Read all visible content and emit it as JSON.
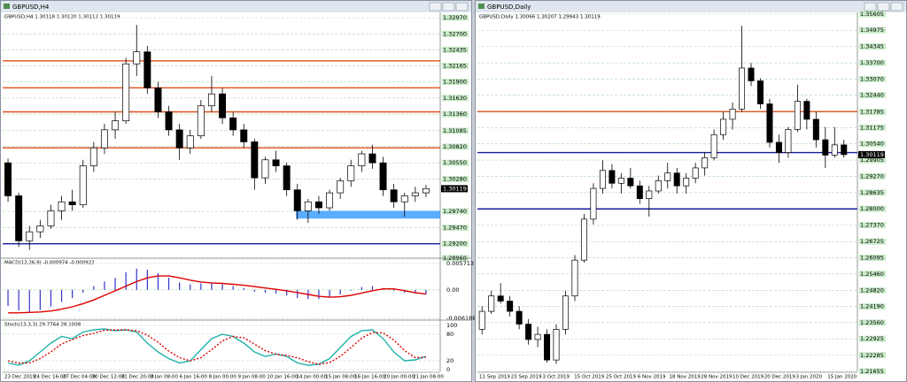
{
  "windows": [
    {
      "title": "GBPUSD,H4",
      "info": "GBPUSD,H4  1.30118 1.30120 1.30112 1.30119",
      "price": {
        "ylim": [
          1.2896,
          1.3297
        ],
        "yticks": [
          {
            "value": 1.3297,
            "label": "1.32970"
          },
          {
            "value": 1.327,
            "label": "1.32700"
          },
          {
            "value": 1.32435,
            "label": "1.32435"
          },
          {
            "value": 1.32165,
            "label": "1.32165"
          },
          {
            "value": 1.319,
            "label": "1.31900"
          },
          {
            "value": 1.3163,
            "label": "1.31630"
          },
          {
            "value": 1.3136,
            "label": "1.31360"
          },
          {
            "value": 1.31085,
            "label": "1.31085"
          },
          {
            "value": 1.3082,
            "label": "1.30820"
          },
          {
            "value": 1.3055,
            "label": "1.30550"
          },
          {
            "value": 1.3028,
            "label": "1.30280"
          },
          {
            "value": 1.2974,
            "label": "1.29740"
          },
          {
            "value": 1.2947,
            "label": "1.29470"
          },
          {
            "value": 1.292,
            "label": "1.29200"
          },
          {
            "value": 1.2896,
            "label": "1.28960"
          }
        ],
        "current": 1.30119,
        "levels": [
          {
            "value": 1.3225,
            "color": "#e0501e"
          },
          {
            "value": 1.318,
            "color": "#e0501e"
          },
          {
            "value": 1.314,
            "color": "#e0501e"
          },
          {
            "value": 1.308,
            "color": "#e0501e"
          },
          {
            "value": 1.292,
            "color": "#1a1aa0"
          }
        ],
        "zones": [
          {
            "low": 1.2962,
            "high": 1.2975,
            "color": "#3399ff"
          }
        ],
        "candles": [
          [
            1.3055,
            1.3062,
            1.299,
            1.3
          ],
          [
            1.3,
            1.3005,
            1.2915,
            1.2925
          ],
          [
            1.2925,
            1.295,
            1.291,
            1.294
          ],
          [
            1.294,
            1.296,
            1.293,
            1.295
          ],
          [
            1.295,
            1.2985,
            1.2945,
            1.2975
          ],
          [
            1.2975,
            1.3,
            1.296,
            1.299
          ],
          [
            1.299,
            1.301,
            1.2975,
            1.2985
          ],
          [
            1.2985,
            1.306,
            1.298,
            1.305
          ],
          [
            1.305,
            1.309,
            1.304,
            1.308
          ],
          [
            1.308,
            1.312,
            1.307,
            1.311
          ],
          [
            1.311,
            1.314,
            1.3095,
            1.3125
          ],
          [
            1.3125,
            1.323,
            1.312,
            1.322
          ],
          [
            1.322,
            1.3285,
            1.32,
            1.324
          ],
          [
            1.324,
            1.325,
            1.317,
            1.318
          ],
          [
            1.318,
            1.319,
            1.313,
            1.314
          ],
          [
            1.314,
            1.315,
            1.31,
            1.311
          ],
          [
            1.311,
            1.312,
            1.306,
            1.308
          ],
          [
            1.308,
            1.311,
            1.307,
            1.31
          ],
          [
            1.31,
            1.316,
            1.3095,
            1.315
          ],
          [
            1.315,
            1.32,
            1.314,
            1.317
          ],
          [
            1.317,
            1.318,
            1.312,
            1.313
          ],
          [
            1.313,
            1.314,
            1.31,
            1.311
          ],
          [
            1.311,
            1.312,
            1.308,
            1.309
          ],
          [
            1.309,
            1.3095,
            1.301,
            1.303
          ],
          [
            1.303,
            1.3065,
            1.302,
            1.306
          ],
          [
            1.306,
            1.3075,
            1.304,
            1.305
          ],
          [
            1.305,
            1.3055,
            1.3,
            1.301
          ],
          [
            1.301,
            1.302,
            1.296,
            1.2975
          ],
          [
            1.2975,
            1.2995,
            1.2955,
            1.299
          ],
          [
            1.299,
            1.3,
            1.297,
            1.298
          ],
          [
            1.298,
            1.301,
            1.2975,
            1.3005
          ],
          [
            1.3005,
            1.303,
            1.2995,
            1.3025
          ],
          [
            1.3025,
            1.306,
            1.3015,
            1.305
          ],
          [
            1.305,
            1.3075,
            1.304,
            1.307
          ],
          [
            1.307,
            1.3085,
            1.3045,
            1.3055
          ],
          [
            1.3055,
            1.3065,
            1.3,
            1.301
          ],
          [
            1.301,
            1.302,
            1.298,
            1.299
          ],
          [
            1.299,
            1.3005,
            1.2965,
            1.3
          ],
          [
            1.3,
            1.3015,
            1.299,
            1.3005
          ],
          [
            1.3005,
            1.3018,
            1.2998,
            1.3012
          ]
        ]
      },
      "macd": {
        "title": "MACD(12,26,9) -0.000974 -0.000922",
        "ylim": [
          -0.006188,
          0.005713
        ],
        "yticks": [
          0.005713,
          {
            "value": 0,
            "label": "0.00"
          },
          -0.006188
        ],
        "hist": {
          "color": "#3333cc",
          "values": [
            -0.0035,
            -0.0045,
            -0.0048,
            -0.0044,
            -0.0036,
            -0.0026,
            -0.0018,
            -0.0006,
            0.0008,
            0.0018,
            0.0026,
            0.0038,
            0.0046,
            0.0044,
            0.0036,
            0.0026,
            0.0016,
            0.0012,
            0.0014,
            0.0016,
            0.0012,
            0.0008,
            0.0004,
            -0.0004,
            -0.0006,
            -0.0008,
            -0.0012,
            -0.0018,
            -0.002,
            -0.002,
            -0.0016,
            -0.001,
            -0.0002,
            0.0006,
            0.0008,
            0.0004,
            -0.0002,
            -0.0006,
            -0.0008,
            -0.000974
          ]
        },
        "signal": {
          "color": "#dd0000",
          "values": [
            -0.005,
            -0.005,
            -0.0049,
            -0.0048,
            -0.0046,
            -0.0042,
            -0.0037,
            -0.003,
            -0.0022,
            -0.0012,
            -0.0002,
            0.0008,
            0.0018,
            0.0026,
            0.003,
            0.003,
            0.0026,
            0.0021,
            0.0017,
            0.0015,
            0.0014,
            0.0012,
            0.001,
            0.0007,
            0.0004,
            0.0001,
            -0.0002,
            -0.0006,
            -0.001,
            -0.0014,
            -0.0016,
            -0.0015,
            -0.0012,
            -0.0007,
            -0.0002,
            0.0002,
            0.0002,
            -0.0002,
            -0.0006,
            -0.000922
          ]
        }
      },
      "stoch": {
        "title": "Stoch(13,3,3) 29.7764 28.1008",
        "ylim": [
          0,
          100
        ],
        "yticks": [
          100,
          80,
          20,
          0
        ],
        "main": {
          "color": "#20b2aa",
          "values": [
            15,
            10,
            20,
            40,
            60,
            75,
            70,
            85,
            90,
            92,
            88,
            90,
            85,
            60,
            40,
            25,
            15,
            20,
            45,
            70,
            80,
            75,
            60,
            40,
            30,
            35,
            30,
            15,
            10,
            12,
            25,
            50,
            75,
            88,
            90,
            70,
            40,
            20,
            22,
            29.7764
          ]
        },
        "signal": {
          "color": "#dd0000",
          "values": [
            20,
            15,
            15,
            25,
            40,
            58,
            68,
            77,
            82,
            89,
            90,
            90,
            88,
            78,
            62,
            42,
            27,
            20,
            27,
            45,
            65,
            75,
            72,
            58,
            43,
            35,
            32,
            27,
            18,
            12,
            16,
            30,
            50,
            71,
            84,
            83,
            67,
            43,
            27,
            28.1008
          ]
        }
      },
      "xlabels": [
        "23 Dec 2019",
        "24 Dec 16:00",
        "27 Dec 04:00",
        "30 Dec 12:00",
        "31 Dec 20:00",
        "3 Jan 08:00",
        "6 Jan 16:00",
        "8 Jan 00:00",
        "9 Jan 08:00",
        "10 Jan 16:00",
        "14 Jan 00:00",
        "15 Jan 08:00",
        "16 Jan 16:00",
        "20 Jan 00:00",
        "21 Jan 08:00"
      ]
    },
    {
      "title": "GBPUSD,Daily",
      "info": "GBPUSD,Daily  1.30066 1.30207 1.29943 1.30119",
      "price": {
        "ylim": [
          1.21655,
          1.35605
        ],
        "yticks": [
          {
            "value": 1.35605,
            "label": "1.35605"
          },
          {
            "value": 1.34975,
            "label": "1.34975"
          },
          {
            "value": 1.34345,
            "label": "1.34345"
          },
          {
            "value": 1.337,
            "label": "1.33700"
          },
          {
            "value": 1.3307,
            "label": "1.33070"
          },
          {
            "value": 1.3244,
            "label": "1.32440"
          },
          {
            "value": 1.31785,
            "label": "1.31785"
          },
          {
            "value": 1.31175,
            "label": "1.31175"
          },
          {
            "value": 1.3054,
            "label": "1.30540"
          },
          {
            "value": 1.29905,
            "label": "1.29905"
          },
          {
            "value": 1.2927,
            "label": "1.29270"
          },
          {
            "value": 1.28635,
            "label": "1.28635"
          },
          {
            "value": 1.28,
            "label": "1.28000"
          },
          {
            "value": 1.2737,
            "label": "1.27370"
          },
          {
            "value": 1.26725,
            "label": "1.26725"
          },
          {
            "value": 1.26095,
            "label": "1.26095"
          },
          {
            "value": 1.2546,
            "label": "1.25460"
          },
          {
            "value": 1.2482,
            "label": "1.24820"
          },
          {
            "value": 1.2419,
            "label": "1.24190"
          },
          {
            "value": 1.2356,
            "label": "1.23560"
          },
          {
            "value": 1.22925,
            "label": "1.22925"
          },
          {
            "value": 1.22285,
            "label": "1.22285"
          },
          {
            "value": 1.21655,
            "label": "1.21655"
          }
        ],
        "current": 1.30119,
        "levels": [
          {
            "value": 1.318,
            "color": "#e0501e"
          },
          {
            "value": 1.302,
            "color": "#1a1aa0"
          },
          {
            "value": 1.28,
            "color": "#1a1aa0"
          }
        ],
        "zones": [],
        "candles": [
          [
            1.233,
            1.242,
            1.231,
            1.24
          ],
          [
            1.24,
            1.248,
            1.239,
            1.246
          ],
          [
            1.246,
            1.251,
            1.243,
            1.244
          ],
          [
            1.244,
            1.246,
            1.238,
            1.24
          ],
          [
            1.24,
            1.242,
            1.233,
            1.235
          ],
          [
            1.235,
            1.237,
            1.227,
            1.229
          ],
          [
            1.229,
            1.234,
            1.226,
            1.231
          ],
          [
            1.231,
            1.233,
            1.22,
            1.221
          ],
          [
            1.221,
            1.235,
            1.2195,
            1.233
          ],
          [
            1.233,
            1.248,
            1.231,
            1.246
          ],
          [
            1.246,
            1.262,
            1.244,
            1.26
          ],
          [
            1.26,
            1.278,
            1.259,
            1.276
          ],
          [
            1.276,
            1.29,
            1.274,
            1.288
          ],
          [
            1.288,
            1.299,
            1.286,
            1.295
          ],
          [
            1.295,
            1.2975,
            1.288,
            1.29
          ],
          [
            1.29,
            1.294,
            1.286,
            1.292
          ],
          [
            1.292,
            1.296,
            1.288,
            1.289
          ],
          [
            1.289,
            1.291,
            1.282,
            1.284
          ],
          [
            1.284,
            1.289,
            1.277,
            1.287
          ],
          [
            1.287,
            1.293,
            1.286,
            1.291
          ],
          [
            1.291,
            1.298,
            1.288,
            1.294
          ],
          [
            1.294,
            1.296,
            1.286,
            1.289
          ],
          [
            1.289,
            1.294,
            1.286,
            1.292
          ],
          [
            1.292,
            1.298,
            1.29,
            1.296
          ],
          [
            1.296,
            1.302,
            1.293,
            1.3
          ],
          [
            1.3,
            1.311,
            1.299,
            1.309
          ],
          [
            1.309,
            1.318,
            1.307,
            1.315
          ],
          [
            1.315,
            1.3215,
            1.311,
            1.319
          ],
          [
            1.319,
            1.3515,
            1.318,
            1.335
          ],
          [
            1.335,
            1.337,
            1.328,
            1.33
          ],
          [
            1.33,
            1.331,
            1.319,
            1.321
          ],
          [
            1.321,
            1.323,
            1.304,
            1.306
          ],
          [
            1.306,
            1.309,
            1.298,
            1.302
          ],
          [
            1.302,
            1.312,
            1.3,
            1.311
          ],
          [
            1.311,
            1.3285,
            1.31,
            1.322
          ],
          [
            1.322,
            1.323,
            1.311,
            1.315
          ],
          [
            1.315,
            1.318,
            1.304,
            1.307
          ],
          [
            1.307,
            1.312,
            1.296,
            1.301
          ],
          [
            1.301,
            1.312,
            1.3,
            1.305
          ],
          [
            1.305,
            1.307,
            1.3,
            1.3012
          ]
        ]
      },
      "xlabels": [
        "11 Sep 2019",
        "23 Sep 2019",
        "3 Oct 2019",
        "15 Oct 2019",
        "25 Oct 2019",
        "6 Nov 2019",
        "18 Nov 2019",
        "28 Nov 2019",
        "10 Dec 2019",
        "20 Dec 2019",
        "3 Jan 2020",
        "15 Jan 2020"
      ]
    }
  ]
}
